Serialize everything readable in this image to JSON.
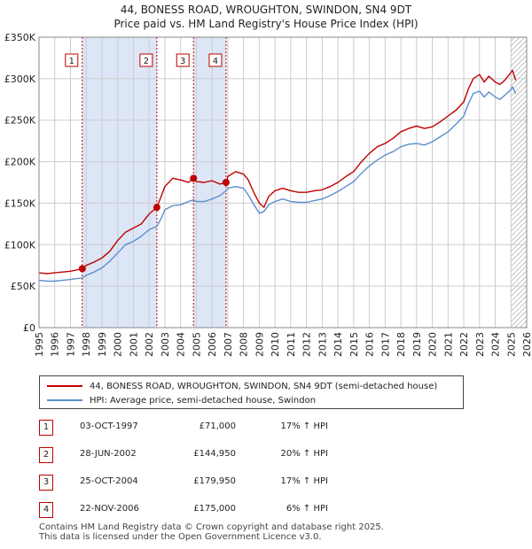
{
  "title_line1": "44, BONESS ROAD, WROUGHTON, SWINDON, SN4 9DT",
  "title_line2": "Price paid vs. HM Land Registry's House Price Index (HPI)",
  "legend": {
    "red_label": "44, BONESS ROAD, WROUGHTON, SWINDON, SN4 9DT (semi-detached house)",
    "blue_label": "HPI: Average price, semi-detached house, Swindon"
  },
  "colors": {
    "red": "#c00000",
    "blue": "#5b8fcf",
    "shade": "#dde6f7",
    "grid": "#cccccc"
  },
  "transactions": [
    {
      "num": "1",
      "date": "03-OCT-1997",
      "price": "£71,000",
      "hpi": "17% ↑ HPI"
    },
    {
      "num": "2",
      "date": "28-JUN-2002",
      "price": "£144,950",
      "hpi": "20% ↑ HPI"
    },
    {
      "num": "3",
      "date": "25-OCT-2004",
      "price": "£179,950",
      "hpi": "17% ↑ HPI"
    },
    {
      "num": "4",
      "date": "22-NOV-2006",
      "price": "£175,000",
      "hpi": "6% ↑ HPI"
    }
  ],
  "footer_line1": "Contains HM Land Registry data © Crown copyright and database right 2025.",
  "footer_line2": "This data is licensed under the Open Government Licence v3.0.",
  "chart_data": {
    "type": "line",
    "xlim": [
      1995,
      2026
    ],
    "ylim": [
      0,
      350000
    ],
    "y_ticks": [
      0,
      50000,
      100000,
      150000,
      200000,
      250000,
      300000,
      350000
    ],
    "y_tick_labels": [
      "£0",
      "£50K",
      "£100K",
      "£150K",
      "£200K",
      "£250K",
      "£300K",
      "£350K"
    ],
    "x_ticks": [
      1995,
      1996,
      1997,
      1998,
      1999,
      2000,
      2001,
      2002,
      2003,
      2004,
      2005,
      2006,
      2007,
      2008,
      2009,
      2010,
      2011,
      2012,
      2013,
      2014,
      2015,
      2016,
      2017,
      2018,
      2019,
      2020,
      2021,
      2022,
      2023,
      2024,
      2025,
      2026
    ],
    "shaded_ranges": [
      [
        1997.75,
        2002.49
      ],
      [
        2004.82,
        2006.89
      ]
    ],
    "future_from": 2025.0,
    "sales": [
      {
        "label": "1",
        "x": 1997.75,
        "y": 71000
      },
      {
        "label": "2",
        "x": 2002.49,
        "y": 144950
      },
      {
        "label": "3",
        "x": 2004.82,
        "y": 179950
      },
      {
        "label": "4",
        "x": 2006.89,
        "y": 175000
      }
    ],
    "series": [
      {
        "name": "44, BONESS ROAD, WROUGHTON, SWINDON, SN4 9DT (semi-detached house)",
        "color": "#c00000",
        "x": [
          1995,
          1995.5,
          1996,
          1996.5,
          1997,
          1997.75,
          1998,
          1998.5,
          1999,
          1999.5,
          2000,
          2000.5,
          2001,
          2001.5,
          2002,
          2002.49,
          2002.8,
          2003,
          2003.5,
          2004,
          2004.5,
          2004.82,
          2005,
          2005.5,
          2006,
          2006.5,
          2006.89,
          2007,
          2007.5,
          2008,
          2008.3,
          2008.6,
          2009,
          2009.3,
          2009.6,
          2010,
          2010.5,
          2011,
          2011.5,
          2012,
          2012.5,
          2013,
          2013.5,
          2014,
          2014.5,
          2015,
          2015.5,
          2016,
          2016.5,
          2017,
          2017.5,
          2018,
          2018.5,
          2019,
          2019.5,
          2020,
          2020.5,
          2021,
          2021.5,
          2022,
          2022.3,
          2022.6,
          2023,
          2023.3,
          2023.6,
          2024,
          2024.3,
          2024.6,
          2024.9,
          2025.1,
          2025.3
        ],
        "values": [
          66000,
          65000,
          66000,
          67000,
          68000,
          71000,
          75000,
          79000,
          84000,
          92000,
          105000,
          115000,
          120000,
          125000,
          137000,
          144950,
          160000,
          170000,
          180000,
          178000,
          175000,
          179950,
          176000,
          175000,
          177000,
          173000,
          175000,
          182000,
          188000,
          185000,
          178000,
          165000,
          150000,
          145000,
          158000,
          165000,
          168000,
          165000,
          163000,
          163000,
          165000,
          166000,
          170000,
          175000,
          182000,
          188000,
          200000,
          210000,
          218000,
          222000,
          228000,
          236000,
          240000,
          243000,
          240000,
          242000,
          248000,
          255000,
          262000,
          272000,
          288000,
          300000,
          305000,
          296000,
          303000,
          296000,
          293000,
          298000,
          305000,
          310000,
          298000
        ]
      },
      {
        "name": "HPI: Average price, semi-detached house, Swindon",
        "color": "#5b8fcf",
        "x": [
          1995,
          1995.5,
          1996,
          1996.5,
          1997,
          1997.75,
          1998,
          1998.5,
          1999,
          1999.5,
          2000,
          2000.5,
          2001,
          2001.5,
          2002,
          2002.49,
          2002.8,
          2003,
          2003.5,
          2004,
          2004.5,
          2004.82,
          2005,
          2005.5,
          2006,
          2006.5,
          2006.89,
          2007,
          2007.5,
          2008,
          2008.3,
          2008.6,
          2009,
          2009.3,
          2009.6,
          2010,
          2010.5,
          2011,
          2011.5,
          2012,
          2012.5,
          2013,
          2013.5,
          2014,
          2014.5,
          2015,
          2015.5,
          2016,
          2016.5,
          2017,
          2017.5,
          2018,
          2018.5,
          2019,
          2019.5,
          2020,
          2020.5,
          2021,
          2021.5,
          2022,
          2022.3,
          2022.6,
          2023,
          2023.3,
          2023.6,
          2024,
          2024.3,
          2024.6,
          2024.9,
          2025.1,
          2025.3
        ],
        "values": [
          57000,
          56000,
          56000,
          57000,
          58000,
          60000,
          63000,
          67000,
          72000,
          80000,
          90000,
          100000,
          104000,
          110000,
          118000,
          122000,
          133000,
          142000,
          147000,
          148000,
          152000,
          154000,
          152000,
          152000,
          155000,
          159000,
          165000,
          168000,
          170000,
          168000,
          160000,
          150000,
          138000,
          140000,
          148000,
          152000,
          155000,
          152000,
          151000,
          151000,
          153000,
          155000,
          159000,
          164000,
          170000,
          176000,
          186000,
          195000,
          202000,
          208000,
          212000,
          218000,
          221000,
          222000,
          220000,
          224000,
          230000,
          236000,
          245000,
          255000,
          270000,
          282000,
          285000,
          278000,
          284000,
          278000,
          275000,
          280000,
          285000,
          290000,
          282000
        ]
      }
    ]
  }
}
